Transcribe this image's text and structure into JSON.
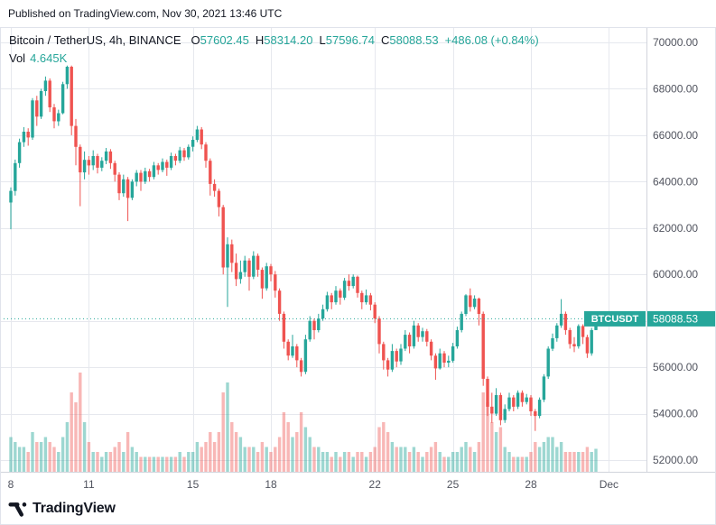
{
  "published_bar": {
    "text": "Published on TradingView.com, Nov 30, 2021 13:46 UTC"
  },
  "legend": {
    "title": "Bitcoin / TetherUS, 4h, BINANCE",
    "ohlc": [
      {
        "label": "O",
        "value": "57602.45"
      },
      {
        "label": "H",
        "value": "58314.20"
      },
      {
        "label": "L",
        "value": "57596.74"
      },
      {
        "label": "C",
        "value": "58088.53"
      }
    ],
    "change": "+486.08 (+0.84%)",
    "vol_label": "Vol",
    "vol_value": "4.645K"
  },
  "footer": {
    "brand": "TradingView"
  },
  "colors": {
    "up": "#26a69a",
    "down": "#ef5350",
    "vol_up": "rgba(38,166,154,0.45)",
    "vol_down": "rgba(239,83,80,0.42)",
    "grid": "#e6e8ee",
    "axis_border": "#d1d4dc",
    "axis_text": "#50535e",
    "widget_border": "#e0e3eb",
    "text_dark": "#131722",
    "badge_text": "#ffffff"
  },
  "chart_data": {
    "type": "candlestick",
    "title": "Bitcoin / TetherUS, 4h, BINANCE",
    "symbol": "BTCUSDT",
    "interval": "4h",
    "exchange": "BINANCE",
    "legend_position": "top-left",
    "grid": true,
    "last_price": {
      "symbol": "BTCUSDT",
      "price": "58088.53",
      "value": 58088.53
    },
    "y_axis": {
      "min": 52000,
      "max": 70000,
      "step": 2000,
      "side": "right",
      "ticks": [
        {
          "value": 70000,
          "label": "70000.00"
        },
        {
          "value": 68000,
          "label": "68000.00"
        },
        {
          "value": 66000,
          "label": "66000.00"
        },
        {
          "value": 64000,
          "label": "64000.00"
        },
        {
          "value": 62000,
          "label": "62000.00"
        },
        {
          "value": 60000,
          "label": "60000.00"
        },
        {
          "value": 58000,
          "label": "58000.00"
        },
        {
          "value": 56000,
          "label": "56000.00"
        },
        {
          "value": 54000,
          "label": "54000.00"
        },
        {
          "value": 52000,
          "label": "52000.00"
        }
      ]
    },
    "x_axis": {
      "unit": "date (Nov 2021, 4h candles, 6 per day)",
      "ticks": [
        {
          "text": "8",
          "slot": 0
        },
        {
          "text": "11",
          "slot": 18
        },
        {
          "text": "15",
          "slot": 42
        },
        {
          "text": "18",
          "slot": 60
        },
        {
          "text": "22",
          "slot": 84
        },
        {
          "text": "25",
          "slot": 102
        },
        {
          "text": "28",
          "slot": 120
        },
        {
          "text": "Dec",
          "slot": 138
        }
      ]
    },
    "candle_format": [
      "open",
      "high",
      "low",
      "close",
      "volume_k"
    ],
    "candles": [
      [
        63100,
        63750,
        61950,
        63600,
        7.0
      ],
      [
        63600,
        64950,
        63400,
        64800,
        6.0
      ],
      [
        64800,
        65850,
        64600,
        65700,
        5.0
      ],
      [
        65700,
        66350,
        65500,
        66150,
        5.0
      ],
      [
        66150,
        66300,
        65550,
        65900,
        4.0
      ],
      [
        65900,
        67600,
        65800,
        67500,
        8.0
      ],
      [
        67500,
        67700,
        66400,
        66800,
        6.0
      ],
      [
        66800,
        68000,
        66700,
        67900,
        6.0
      ],
      [
        67900,
        68530,
        67700,
        68350,
        7.0
      ],
      [
        68350,
        68450,
        67000,
        67200,
        6.0
      ],
      [
        67200,
        67350,
        66300,
        66600,
        5.0
      ],
      [
        66600,
        67100,
        66400,
        66950,
        4.0
      ],
      [
        66950,
        68300,
        66900,
        68200,
        7.0
      ],
      [
        68200,
        69000,
        68000,
        68950,
        10.0
      ],
      [
        68950,
        69000,
        66000,
        66400,
        16.0
      ],
      [
        66400,
        66700,
        64700,
        65500,
        14.0
      ],
      [
        65500,
        65600,
        62940,
        64400,
        20.0
      ],
      [
        64400,
        65300,
        64100,
        64940,
        10.0
      ],
      [
        64940,
        65100,
        64300,
        64700,
        6.0
      ],
      [
        64700,
        65350,
        64500,
        65100,
        4.0
      ],
      [
        65100,
        65200,
        64350,
        64600,
        4.0
      ],
      [
        64600,
        65050,
        64450,
        64900,
        3.0
      ],
      [
        64900,
        65450,
        64750,
        65300,
        4.0
      ],
      [
        65300,
        65400,
        64550,
        64800,
        4.0
      ],
      [
        64800,
        64900,
        64000,
        64300,
        5.0
      ],
      [
        64300,
        64400,
        63200,
        63500,
        6.0
      ],
      [
        63500,
        64300,
        63350,
        64100,
        4.0
      ],
      [
        64100,
        64200,
        62300,
        63300,
        8.0
      ],
      [
        63300,
        64100,
        63200,
        64000,
        5.0
      ],
      [
        64000,
        64500,
        63800,
        64380,
        4.0
      ],
      [
        64380,
        64500,
        63600,
        64000,
        3.0
      ],
      [
        64000,
        64600,
        63900,
        64450,
        3.0
      ],
      [
        64450,
        64550,
        64000,
        64200,
        3.0
      ],
      [
        64200,
        64850,
        64100,
        64700,
        3.0
      ],
      [
        64700,
        64800,
        64300,
        64500,
        3.0
      ],
      [
        64500,
        65000,
        64400,
        64850,
        3.0
      ],
      [
        64850,
        64950,
        64250,
        64600,
        3.0
      ],
      [
        64600,
        65250,
        64500,
        65100,
        3.0
      ],
      [
        65100,
        65200,
        64700,
        64900,
        3.0
      ],
      [
        64900,
        65500,
        64800,
        65350,
        4.0
      ],
      [
        65350,
        65450,
        64900,
        65050,
        3.0
      ],
      [
        65050,
        65600,
        64950,
        65500,
        4.0
      ],
      [
        65500,
        65950,
        65300,
        65800,
        4.0
      ],
      [
        65800,
        66400,
        65700,
        66250,
        6.0
      ],
      [
        66250,
        66350,
        65400,
        65600,
        5.0
      ],
      [
        65600,
        65700,
        64600,
        64900,
        6.0
      ],
      [
        64900,
        65000,
        63400,
        63900,
        8.0
      ],
      [
        63900,
        64100,
        63350,
        63600,
        6.0
      ],
      [
        63600,
        63700,
        62500,
        62900,
        8.0
      ],
      [
        62900,
        63000,
        60000,
        60300,
        16.0
      ],
      [
        60300,
        61600,
        58600,
        61300,
        18.0
      ],
      [
        61300,
        61500,
        60100,
        60500,
        10.0
      ],
      [
        60500,
        60900,
        59500,
        59800,
        8.0
      ],
      [
        59800,
        60600,
        59600,
        60100,
        7.0
      ],
      [
        60100,
        60800,
        59900,
        60600,
        5.0
      ],
      [
        60600,
        60700,
        59300,
        59900,
        5.0
      ],
      [
        59900,
        61000,
        59800,
        60800,
        5.0
      ],
      [
        60800,
        60900,
        59900,
        60200,
        4.0
      ],
      [
        60200,
        60300,
        58950,
        59400,
        6.0
      ],
      [
        59400,
        60500,
        59300,
        60350,
        5.0
      ],
      [
        60350,
        60450,
        59700,
        60000,
        4.0
      ],
      [
        60000,
        60150,
        59000,
        59300,
        5.0
      ],
      [
        59300,
        59400,
        58000,
        58300,
        7.0
      ],
      [
        58300,
        58400,
        56800,
        57100,
        12.0
      ],
      [
        57100,
        57200,
        56300,
        56500,
        10.0
      ],
      [
        56500,
        57400,
        56400,
        56900,
        7.0
      ],
      [
        56900,
        57000,
        56000,
        56300,
        8.0
      ],
      [
        56300,
        56400,
        55600,
        55800,
        12.0
      ],
      [
        55800,
        57400,
        55700,
        57200,
        9.0
      ],
      [
        57200,
        58200,
        57100,
        58000,
        7.0
      ],
      [
        58000,
        58100,
        57200,
        57600,
        5.0
      ],
      [
        57600,
        58300,
        57500,
        58100,
        5.0
      ],
      [
        58100,
        58700,
        58000,
        58500,
        4.0
      ],
      [
        58500,
        59250,
        58400,
        59100,
        4.0
      ],
      [
        59100,
        59200,
        58500,
        58800,
        3.0
      ],
      [
        58800,
        59500,
        58700,
        59300,
        4.0
      ],
      [
        59300,
        59400,
        58700,
        59000,
        3.0
      ],
      [
        59000,
        59850,
        58900,
        59730,
        4.0
      ],
      [
        59730,
        60000,
        59300,
        59500,
        4.0
      ],
      [
        59500,
        60000,
        59400,
        59900,
        3.0
      ],
      [
        59900,
        59950,
        59000,
        59200,
        4.0
      ],
      [
        59200,
        59300,
        58500,
        58800,
        4.0
      ],
      [
        58800,
        59350,
        58700,
        59100,
        3.0
      ],
      [
        59100,
        59200,
        58450,
        58700,
        4.0
      ],
      [
        58700,
        58800,
        57900,
        58100,
        5.0
      ],
      [
        58100,
        58200,
        56600,
        57000,
        9.0
      ],
      [
        57000,
        57100,
        55900,
        56300,
        10.0
      ],
      [
        56300,
        56400,
        55600,
        55900,
        8.0
      ],
      [
        55900,
        57000,
        55800,
        56700,
        6.0
      ],
      [
        56700,
        56800,
        56000,
        56250,
        5.0
      ],
      [
        56250,
        57000,
        56100,
        56800,
        5.0
      ],
      [
        56800,
        57600,
        56700,
        57400,
        5.0
      ],
      [
        57400,
        57500,
        56600,
        56900,
        4.0
      ],
      [
        56900,
        58000,
        56800,
        57800,
        5.0
      ],
      [
        57800,
        57900,
        57100,
        57300,
        4.0
      ],
      [
        57300,
        57700,
        57100,
        57550,
        3.0
      ],
      [
        57550,
        57650,
        56900,
        57100,
        4.0
      ],
      [
        57100,
        57200,
        56300,
        56500,
        5.0
      ],
      [
        56500,
        56600,
        55460,
        55950,
        6.0
      ],
      [
        55950,
        56800,
        55900,
        56600,
        4.0
      ],
      [
        56600,
        56700,
        56000,
        56200,
        3.0
      ],
      [
        56200,
        56500,
        56000,
        56280,
        3.0
      ],
      [
        56280,
        57050,
        56200,
        56900,
        4.0
      ],
      [
        56900,
        57750,
        56800,
        57600,
        4.0
      ],
      [
        57600,
        58400,
        57500,
        58300,
        5.0
      ],
      [
        58300,
        59150,
        58200,
        59100,
        6.0
      ],
      [
        59100,
        59400,
        58400,
        58600,
        5.0
      ],
      [
        58600,
        59100,
        58500,
        58960,
        4.0
      ],
      [
        58960,
        59000,
        57800,
        58300,
        6.0
      ],
      [
        58300,
        58400,
        55200,
        55500,
        16.0
      ],
      [
        55500,
        55600,
        53900,
        54300,
        14.0
      ],
      [
        54300,
        54900,
        53600,
        54000,
        10.0
      ],
      [
        54000,
        55100,
        53900,
        54800,
        8.0
      ],
      [
        54800,
        54900,
        53500,
        53720,
        9.0
      ],
      [
        53720,
        54400,
        53600,
        54200,
        5.0
      ],
      [
        54200,
        54900,
        54100,
        54700,
        4.0
      ],
      [
        54700,
        54800,
        54100,
        54300,
        3.0
      ],
      [
        54300,
        55000,
        54200,
        54900,
        3.0
      ],
      [
        54900,
        55000,
        54300,
        54500,
        3.0
      ],
      [
        54500,
        54850,
        54400,
        54700,
        3.0
      ],
      [
        54700,
        54800,
        53900,
        54100,
        4.0
      ],
      [
        54100,
        54200,
        53256,
        53900,
        6.0
      ],
      [
        53900,
        54700,
        53800,
        54600,
        5.0
      ],
      [
        54600,
        55700,
        54500,
        55600,
        6.0
      ],
      [
        55600,
        56900,
        55500,
        56800,
        7.0
      ],
      [
        56800,
        57450,
        56700,
        57250,
        7.0
      ],
      [
        57250,
        57900,
        57100,
        57800,
        5.0
      ],
      [
        57800,
        58935,
        57700,
        58300,
        6.0
      ],
      [
        58300,
        58400,
        57400,
        57600,
        4.0
      ],
      [
        57600,
        57700,
        56800,
        57000,
        4.0
      ],
      [
        57000,
        57300,
        56651,
        56900,
        4.0
      ],
      [
        56900,
        57850,
        56800,
        57776,
        4.0
      ],
      [
        57776,
        57850,
        57000,
        57300,
        4.0
      ],
      [
        57300,
        57400,
        56400,
        56600,
        5.0
      ],
      [
        56600,
        57700,
        56500,
        57602.45,
        4.0
      ],
      [
        57602.45,
        58314.2,
        57596.74,
        58088.53,
        4.645
      ]
    ]
  }
}
